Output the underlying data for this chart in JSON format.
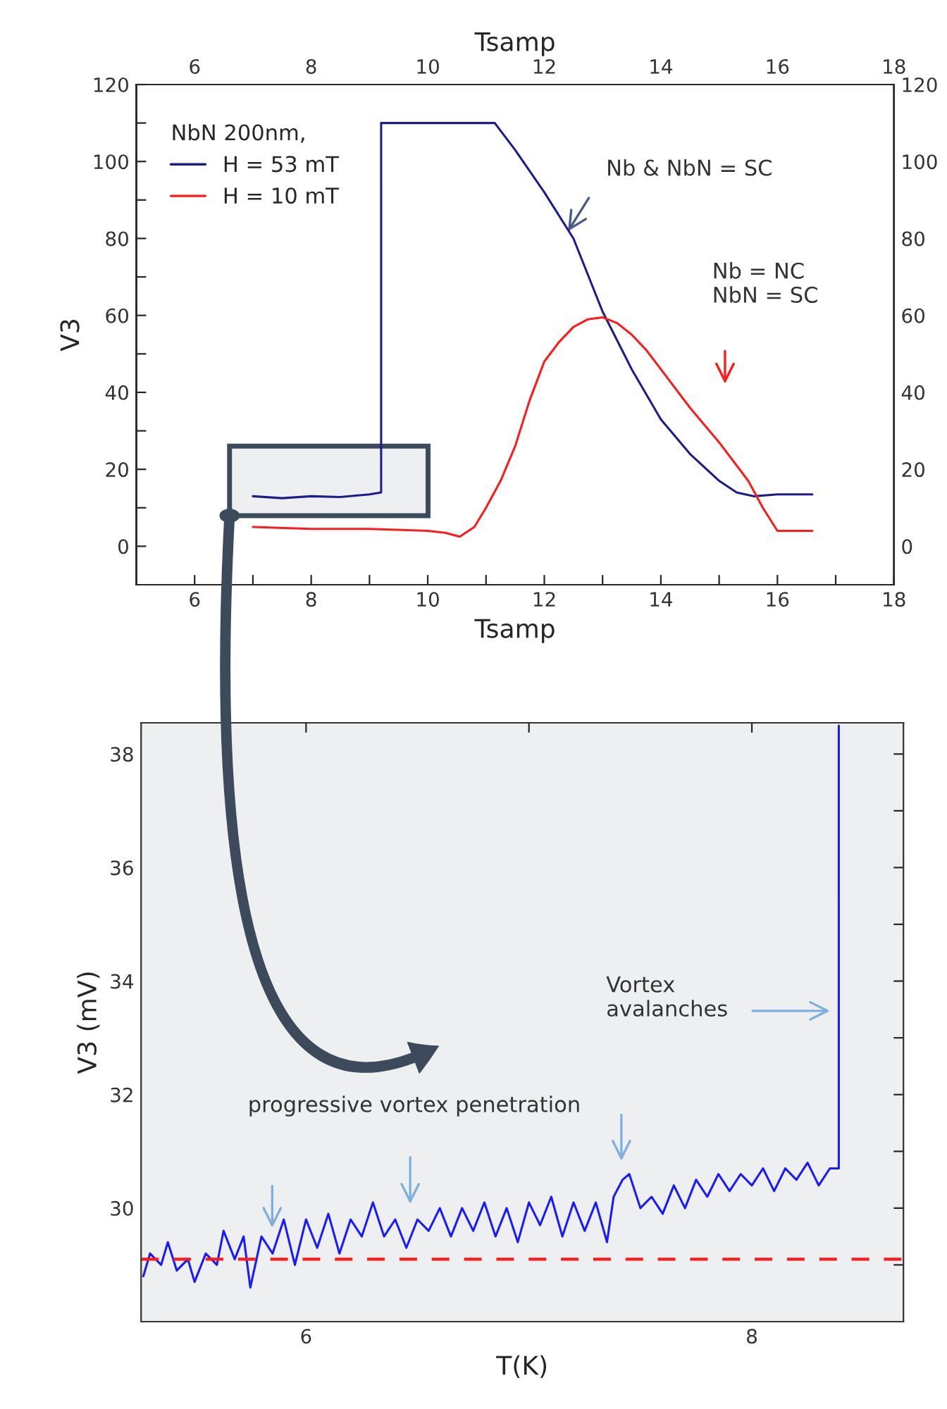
{
  "chart_data": [
    {
      "type": "line",
      "xlabel": "Tsamp",
      "x2label": "Tsamp",
      "ylabel": "V3",
      "legend_title": "NbN 200nm,",
      "legend": "top left",
      "grid": false,
      "xlim": [
        5,
        18
      ],
      "xticks": [
        6,
        {
          "value": 7,
          "label": null
        },
        8,
        {
          "value": 9,
          "label": null
        },
        10,
        {
          "value": 11,
          "label": null
        },
        12,
        {
          "value": 13,
          "label": null
        },
        14,
        {
          "value": 15,
          "label": null
        },
        16,
        {
          "value": 17,
          "label": null
        },
        18
      ],
      "x2lim": [
        5,
        18
      ],
      "x2ticks": [
        6,
        8,
        10,
        12,
        14,
        16,
        18
      ],
      "ylim": [
        -10,
        120
      ],
      "yticks": [
        0,
        {
          "value": 10,
          "label": null
        },
        20,
        {
          "value": 30,
          "label": null
        },
        40,
        {
          "value": 50,
          "label": null
        },
        60,
        {
          "value": 70,
          "label": null
        },
        80,
        {
          "value": 90,
          "label": null
        },
        100,
        {
          "value": 110,
          "label": null
        },
        120
      ],
      "y2lim": [
        -10,
        120
      ],
      "y2ticks": [
        0,
        20,
        40,
        60,
        80,
        100,
        120
      ],
      "series": [
        {
          "name": "H = 53 mT",
          "color": "#1c1c8c",
          "x": [
            7,
            7.5,
            8,
            8.5,
            9,
            9.2,
            9.2,
            11.15,
            11.5,
            12,
            12.5,
            13,
            13.5,
            14,
            14.5,
            15,
            15.3,
            15.6,
            16,
            16.6
          ],
          "values": [
            13,
            12.5,
            13,
            12.8,
            13.5,
            14,
            110,
            110,
            103,
            92,
            80,
            61,
            46,
            33,
            24,
            17,
            14,
            13,
            13.5,
            13.5
          ]
        },
        {
          "name": "H = 10 mT",
          "color": "#ff1a1a",
          "x": [
            7,
            8,
            9,
            10,
            10.3,
            10.55,
            10.8,
            11,
            11.25,
            11.5,
            11.75,
            12,
            12.25,
            12.5,
            12.75,
            13,
            13.25,
            13.5,
            13.75,
            14,
            14.5,
            15,
            15.5,
            15.75,
            16,
            16.3,
            16.6
          ],
          "values": [
            5,
            4.5,
            4.5,
            4,
            3.5,
            2.5,
            5,
            10,
            17,
            26,
            38,
            48,
            53,
            57,
            59,
            59.5,
            58,
            55,
            51,
            46,
            36,
            27,
            17,
            10,
            4,
            4,
            4
          ]
        }
      ],
      "annotations": [
        "Nb & NbN = SC",
        "Nb = NC\nNbN = SC"
      ]
    },
    {
      "type": "line",
      "xlabel": "T(K)",
      "ylabel": "V3 (mV)",
      "grid": false,
      "xlim": [
        5.26,
        8.68
      ],
      "xticks": [
        6,
        {
          "value": 7,
          "label": null
        },
        8
      ],
      "ylim": [
        28,
        38.55
      ],
      "yticks": [
        {
          "value": 29,
          "label": null
        },
        30,
        {
          "value": 31,
          "label": null
        },
        32,
        {
          "value": 33,
          "label": null
        },
        34,
        {
          "value": 35,
          "label": null
        },
        36,
        {
          "value": 37,
          "label": null
        },
        38
      ],
      "series": [
        {
          "color": "#1a1aff",
          "x": [
            5.27,
            5.3,
            5.35,
            5.38,
            5.42,
            5.47,
            5.5,
            5.55,
            5.6,
            5.63,
            5.68,
            5.72,
            5.75,
            5.8,
            5.85,
            5.9,
            5.95,
            6.0,
            6.05,
            6.1,
            6.15,
            6.2,
            6.25,
            6.3,
            6.35,
            6.4,
            6.45,
            6.5,
            6.55,
            6.6,
            6.65,
            6.7,
            6.75,
            6.8,
            6.85,
            6.9,
            6.95,
            7.0,
            7.05,
            7.1,
            7.15,
            7.2,
            7.25,
            7.3,
            7.35,
            7.38,
            7.42,
            7.45,
            7.5,
            7.55,
            7.6,
            7.65,
            7.7,
            7.75,
            7.8,
            7.85,
            7.9,
            7.95,
            8.0,
            8.05,
            8.1,
            8.15,
            8.2,
            8.25,
            8.3,
            8.35,
            8.39,
            8.39
          ],
          "values": [
            28.8,
            29.2,
            29.0,
            29.4,
            28.9,
            29.1,
            28.7,
            29.2,
            29.0,
            29.6,
            29.1,
            29.5,
            28.6,
            29.5,
            29.2,
            29.8,
            29.0,
            29.8,
            29.3,
            29.9,
            29.2,
            29.8,
            29.5,
            30.1,
            29.5,
            29.8,
            29.3,
            29.8,
            29.6,
            30.0,
            29.5,
            30.0,
            29.6,
            30.1,
            29.5,
            30.0,
            29.4,
            30.1,
            29.7,
            30.2,
            29.5,
            30.1,
            29.6,
            30.1,
            29.4,
            30.2,
            30.5,
            30.6,
            30.0,
            30.2,
            29.9,
            30.4,
            30.0,
            30.5,
            30.2,
            30.6,
            30.3,
            30.6,
            30.4,
            30.7,
            30.3,
            30.7,
            30.5,
            30.8,
            30.4,
            30.7,
            30.7,
            38.5
          ]
        }
      ],
      "ref_lines": [
        {
          "axis": "y",
          "value": 29.1,
          "color": "#ff1a1a",
          "line_style": "dashed"
        }
      ],
      "annotations": [
        "progressive vortex penetration",
        "Vortex\navalanches"
      ]
    }
  ]
}
